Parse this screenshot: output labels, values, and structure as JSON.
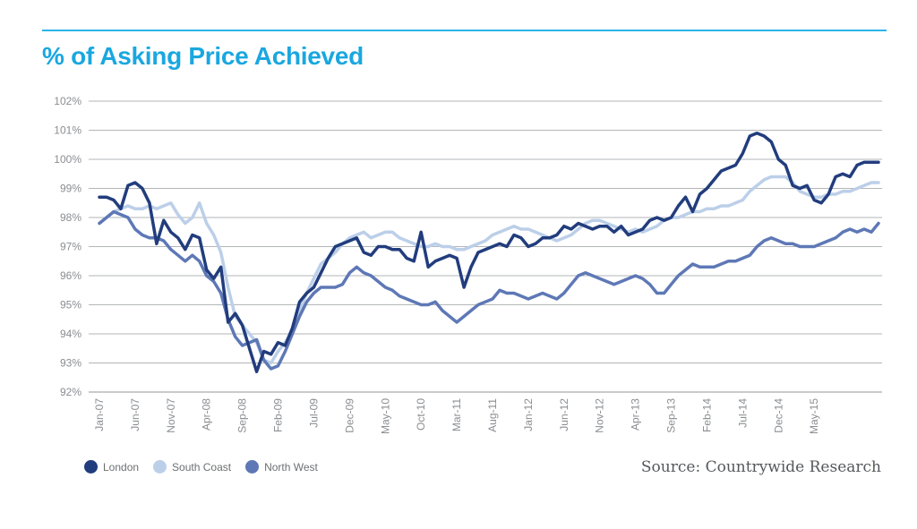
{
  "title": "% of Asking Price Achieved",
  "source": "Source: Countrywide Research",
  "colors": {
    "accent": "#1aa7e0",
    "rule": "#29b5e8",
    "London": "#223d7d",
    "South Coast": "#bccfe9",
    "North West": "#5e78b6",
    "grid": "#9a9da1"
  },
  "chart_data": {
    "type": "line",
    "title": "% of Asking Price Achieved",
    "xlabel": "",
    "ylabel": "",
    "ylim": [
      92,
      102
    ],
    "yticks": [
      "92%",
      "93%",
      "94%",
      "95%",
      "96%",
      "97%",
      "98%",
      "99%",
      "100%",
      "101%",
      "102%"
    ],
    "x_start": "Jan-07",
    "x_end": "May-15",
    "xticks": [
      "Jan-07",
      "Jun-07",
      "Nov-07",
      "Apr-08",
      "Sep-08",
      "Feb-09",
      "Jul-09",
      "Dec-09",
      "May-10",
      "Oct-10",
      "Mar-11",
      "Aug-11",
      "Jan-12",
      "Jun-12",
      "Nov-12",
      "Apr-13",
      "Sep-13",
      "Feb-14",
      "Jul-14",
      "Dec-14",
      "May-15"
    ],
    "grid": "horizontal",
    "legend": "bottom-left",
    "series": [
      {
        "name": "London",
        "values": [
          98.7,
          98.7,
          98.6,
          98.3,
          99.1,
          99.2,
          99.0,
          98.5,
          97.1,
          97.9,
          97.5,
          97.3,
          96.9,
          97.4,
          97.3,
          96.2,
          95.9,
          96.3,
          94.4,
          94.7,
          94.3,
          93.5,
          92.7,
          93.4,
          93.3,
          93.7,
          93.6,
          94.2,
          95.1,
          95.4,
          95.6,
          96.1,
          96.6,
          97.0,
          97.1,
          97.2,
          97.3,
          96.8,
          96.7,
          97.0,
          97.0,
          96.9,
          96.9,
          96.6,
          96.5,
          97.5,
          96.3,
          96.5,
          96.6,
          96.7,
          96.6,
          95.6,
          96.3,
          96.8,
          96.9,
          97.0,
          97.1,
          97.0,
          97.4,
          97.3,
          97.0,
          97.1,
          97.3,
          97.3,
          97.4,
          97.7,
          97.6,
          97.8,
          97.7,
          97.6,
          97.7,
          97.7,
          97.5,
          97.7,
          97.4,
          97.5,
          97.6,
          97.9,
          98.0,
          97.9,
          98.0,
          98.4,
          98.7,
          98.2,
          98.8,
          99.0,
          99.3,
          99.6,
          99.7,
          99.8,
          100.2,
          100.8,
          100.9,
          100.8,
          100.6,
          100.0,
          99.8,
          99.1,
          99.0,
          99.1,
          98.6,
          98.5,
          98.8,
          99.4,
          99.5,
          99.4,
          99.8,
          99.9,
          99.9,
          99.9
        ],
        "color": "#223d7d"
      },
      {
        "name": "South Coast",
        "values": [
          97.8,
          98.0,
          98.2,
          98.3,
          98.4,
          98.3,
          98.3,
          98.4,
          98.3,
          98.4,
          98.5,
          98.1,
          97.8,
          98.0,
          98.5,
          97.8,
          97.4,
          96.8,
          95.6,
          94.6,
          94.3,
          94.0,
          93.7,
          93.1,
          93.0,
          93.4,
          93.7,
          94.1,
          94.8,
          95.4,
          95.9,
          96.4,
          96.6,
          96.8,
          97.1,
          97.3,
          97.4,
          97.5,
          97.3,
          97.4,
          97.5,
          97.5,
          97.3,
          97.2,
          97.1,
          97.0,
          97.0,
          97.1,
          97.0,
          97.0,
          96.9,
          96.9,
          97.0,
          97.1,
          97.2,
          97.4,
          97.5,
          97.6,
          97.7,
          97.6,
          97.6,
          97.5,
          97.4,
          97.3,
          97.2,
          97.3,
          97.4,
          97.6,
          97.8,
          97.9,
          97.9,
          97.8,
          97.7,
          97.6,
          97.5,
          97.6,
          97.5,
          97.6,
          97.7,
          97.9,
          98.0,
          98.0,
          98.1,
          98.2,
          98.2,
          98.3,
          98.3,
          98.4,
          98.4,
          98.5,
          98.6,
          98.9,
          99.1,
          99.3,
          99.4,
          99.4,
          99.4,
          99.2,
          98.9,
          98.8,
          98.7,
          98.7,
          98.8,
          98.8,
          98.9,
          98.9,
          99.0,
          99.1,
          99.2,
          99.2
        ],
        "color": "#bccfe9"
      },
      {
        "name": "North West",
        "values": [
          97.8,
          98.0,
          98.2,
          98.1,
          98.0,
          97.6,
          97.4,
          97.3,
          97.3,
          97.2,
          96.9,
          96.7,
          96.5,
          96.7,
          96.5,
          96.0,
          95.8,
          95.4,
          94.5,
          93.9,
          93.6,
          93.7,
          93.8,
          93.1,
          92.8,
          92.9,
          93.4,
          94.0,
          94.6,
          95.1,
          95.4,
          95.6,
          95.6,
          95.6,
          95.7,
          96.1,
          96.3,
          96.1,
          96.0,
          95.8,
          95.6,
          95.5,
          95.3,
          95.2,
          95.1,
          95.0,
          95.0,
          95.1,
          94.8,
          94.6,
          94.4,
          94.6,
          94.8,
          95.0,
          95.1,
          95.2,
          95.5,
          95.4,
          95.4,
          95.3,
          95.2,
          95.3,
          95.4,
          95.3,
          95.2,
          95.4,
          95.7,
          96.0,
          96.1,
          96.0,
          95.9,
          95.8,
          95.7,
          95.8,
          95.9,
          96.0,
          95.9,
          95.7,
          95.4,
          95.4,
          95.7,
          96.0,
          96.2,
          96.4,
          96.3,
          96.3,
          96.3,
          96.4,
          96.5,
          96.5,
          96.6,
          96.7,
          97.0,
          97.2,
          97.3,
          97.2,
          97.1,
          97.1,
          97.0,
          97.0,
          97.0,
          97.1,
          97.2,
          97.3,
          97.5,
          97.6,
          97.5,
          97.6,
          97.5,
          97.8
        ],
        "color": "#5e78b6"
      }
    ]
  }
}
